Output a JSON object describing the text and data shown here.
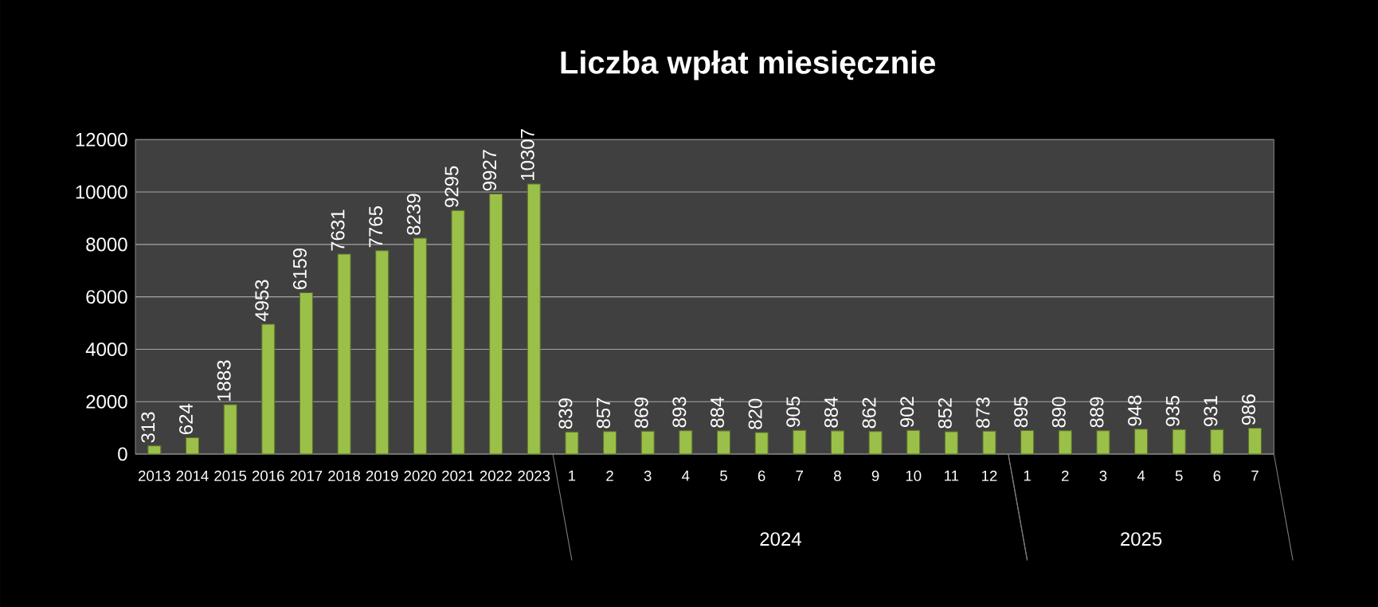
{
  "chart_data": {
    "type": "bar",
    "title": "Liczba wpłat miesięcznie",
    "categories": [
      "2013",
      "2014",
      "2015",
      "2016",
      "2017",
      "2018",
      "2019",
      "2020",
      "2021",
      "2022",
      "2023",
      "1",
      "2",
      "3",
      "4",
      "5",
      "6",
      "7",
      "8",
      "9",
      "10",
      "11",
      "12",
      "1",
      "2",
      "3",
      "4",
      "5",
      "6",
      "7"
    ],
    "values": [
      313,
      624,
      1883,
      4953,
      6159,
      7631,
      7765,
      8239,
      9295,
      9927,
      10307,
      839,
      857,
      869,
      893,
      884,
      820,
      905,
      884,
      862,
      902,
      852,
      873,
      895,
      890,
      889,
      948,
      935,
      931,
      986
    ],
    "color": "#9bc04a",
    "ylim": [
      0,
      12000
    ],
    "yticks": [
      0,
      2000,
      4000,
      6000,
      8000,
      10000,
      12000
    ],
    "grid": "y",
    "data_labels": true,
    "annotations": [
      "2024",
      "2025"
    ]
  }
}
